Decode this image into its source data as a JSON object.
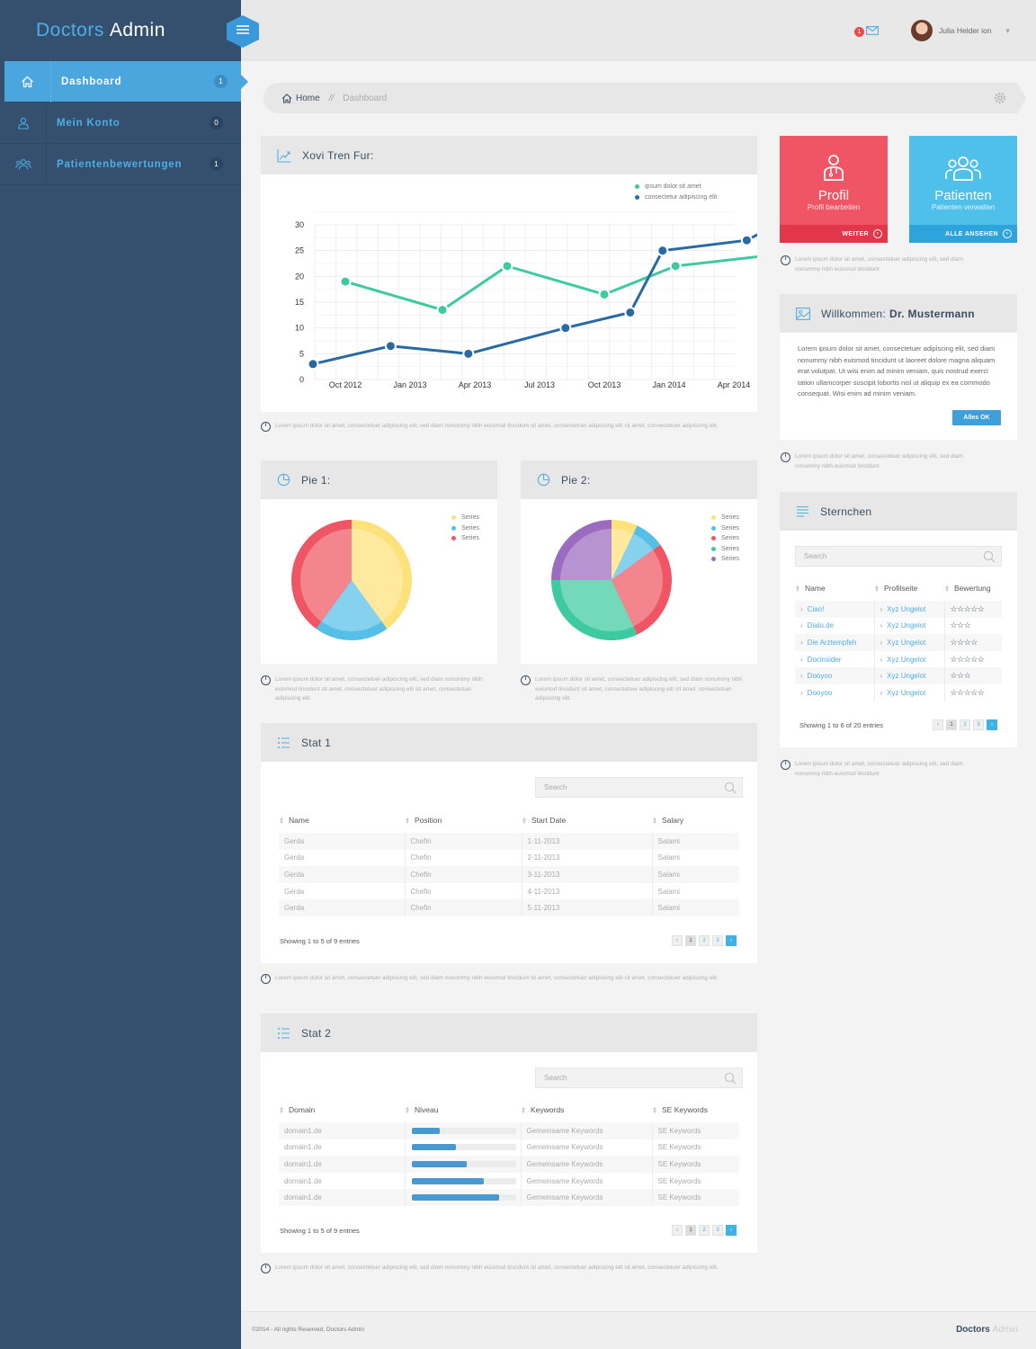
{
  "brand": {
    "part1": "Doctors",
    "part2": "Admin"
  },
  "sidebar": {
    "items": [
      {
        "label": "Dashboard",
        "count": "1",
        "icon": "home-icon"
      },
      {
        "label": "Mein Konto",
        "count": "0",
        "icon": "user-icon"
      },
      {
        "label": "Patientenbewertungen",
        "count": "1",
        "icon": "users-icon"
      }
    ]
  },
  "topbar": {
    "mail_count": "1",
    "user_name": "Julia Helder ion"
  },
  "breadcrumb": {
    "home": "Home",
    "separator": "//",
    "current": "Dashboard"
  },
  "line_panel": {
    "title": "Xovi Tren Fur:"
  },
  "chart_data": [
    {
      "type": "line",
      "x": [
        "Oct 2012",
        "Jan 2013",
        "Apr 2013",
        "Jul 2013",
        "Oct 2013",
        "Jan 2014",
        "Apr 2014"
      ],
      "series": [
        {
          "name": "ipsum dolor sit amet",
          "color": "#3ecaa0",
          "points": [
            [
              0,
              19
            ],
            [
              1.5,
              13.5
            ],
            [
              2.5,
              22
            ],
            [
              4,
              16.5
            ],
            [
              5.1,
              22
            ],
            [
              6.5,
              24
            ]
          ]
        },
        {
          "name": "consectetur adipiscing elit",
          "color": "#2a6aa2",
          "points": [
            [
              -0.5,
              3
            ],
            [
              0.7,
              6.5
            ],
            [
              1.9,
              5
            ],
            [
              3.4,
              10
            ],
            [
              4.4,
              13
            ],
            [
              4.9,
              25
            ],
            [
              6.2,
              27
            ],
            [
              6.5,
              29
            ]
          ]
        }
      ],
      "ylim": [
        0,
        30
      ],
      "yticks": [
        "0",
        "5",
        "10",
        "15",
        "20",
        "25",
        "30"
      ],
      "grid": true,
      "legend": "top-right"
    },
    {
      "type": "pie",
      "title": "Pie 1:",
      "labels": [
        "Series",
        "Series",
        "Series"
      ],
      "values": [
        40,
        20,
        40
      ],
      "colors": [
        "#fde17a",
        "#55bfe8",
        "#ef5564"
      ]
    },
    {
      "type": "pie",
      "title": "Pie 2:",
      "labels": [
        "Series",
        "Series",
        "Series",
        "Series",
        "Series"
      ],
      "values": [
        7,
        8,
        28,
        32,
        25
      ],
      "colors": [
        "#fde17a",
        "#55bfe8",
        "#ef5564",
        "#3ecaa0",
        "#9b6bbf"
      ]
    }
  ],
  "notes": {
    "line": "Lorem ipsum dolor sit amet, consectetuer adipiscing elit, sed diam nonummy nibh euismod tincidunt sit amet, consectetuer adipiscing elit sit amet, consectetuer adipiscing elit.",
    "pie1": "Lorem ipsum dolor sit amet, consectetuer adipiscing elit, sed diam nonummy nibh euismod tincidunt sit amet, consectetuer adipiscing elit sit amet, consectetuer adipiscing elit.",
    "pie2": "Lorem ipsum dolor sit amet, consectetuer adipiscing elit, sed diam nonummy nibh euismod tincidunt sit amet, consectetuer adipiscing elit sit amet, consectetuer adipiscing elit.",
    "stat1": "Lorem ipsum dolor sit amet, consectetuer adipiscing elit, sed diam nonummy nibh euismod tincidunt sit amet, consectetuer adipiscing elit sit amet, consectetuer adipiscing elit.",
    "stat2": "Lorem ipsum dolor sit amet, consectetuer adipiscing elit, sed diam nonummy nibh euismod tincidunt sit amet, consectetuer adipiscing elit sit amet, consectetuer adipiscing elit.",
    "tiles": "Lorem ipsum dolor sit amet, consectetuer adipiscing elit, sed diam nonummy nibh euismod tincidunt",
    "welcome": "Lorem ipsum dolor sit amet, consectetuer adipiscing elit, sed diam nonummy nibh euismod tincidunt",
    "stars": "Lorem ipsum dolor sit amet, consectetuer adipiscing elit, sed diam nonummy nibh euismod tincidunt"
  },
  "stat1": {
    "title": "Stat 1",
    "search_placeholder": "Search",
    "headers": [
      "Name",
      "Position",
      "Start Date",
      "Salary"
    ],
    "rows": [
      [
        "Gerda",
        "Chefin",
        "1-11-2013",
        "Salami"
      ],
      [
        "Gerda",
        "Chefin",
        "2-11-2013",
        "Salami"
      ],
      [
        "Gerda",
        "Chefin",
        "3-11-2013",
        "Salami"
      ],
      [
        "Gerda",
        "Chefin",
        "4-11-2013",
        "Salami"
      ],
      [
        "Gerda",
        "Chefin",
        "5-11-2013",
        "Salami"
      ]
    ],
    "footer": "Showing 1 to 5 of 9 entries",
    "pages": [
      "‹",
      "1",
      "2",
      "3",
      "›"
    ]
  },
  "stat2": {
    "title": "Stat 2",
    "search_placeholder": "Search",
    "headers": [
      "Domain",
      "Niveau",
      "Keywords",
      "SE Keywords"
    ],
    "rows": [
      {
        "domain": "domain1.de",
        "level": 0.27,
        "keywords": "Gemeinsame Keywords",
        "se": "SE Keywords"
      },
      {
        "domain": "domain1.de",
        "level": 0.43,
        "keywords": "Gemeinsame Keywords",
        "se": "SE Keywords"
      },
      {
        "domain": "domain1.de",
        "level": 0.53,
        "keywords": "Gemeinsame Keywords",
        "se": "SE Keywords"
      },
      {
        "domain": "domain1.de",
        "level": 0.69,
        "keywords": "Gemeinsame Keywords",
        "se": "SE Keywords"
      },
      {
        "domain": "domain1.de",
        "level": 0.84,
        "keywords": "Gemeinsame Keywords",
        "se": "SE Keywords"
      }
    ],
    "footer": "Showing 1 to 5 of 9 entries",
    "pages": [
      "‹",
      "1",
      "2",
      "3",
      "›"
    ]
  },
  "tiles": {
    "profil": {
      "title": "Profil",
      "sub": "Profil bearbeiten",
      "action": "WEITER",
      "color": "#ef5564",
      "bar_color": "#e2364a"
    },
    "patienten": {
      "title": "Patienten",
      "sub": "Patienten verwalten",
      "action": "ALLE ANSEHEN",
      "color": "#4fc0ea",
      "bar_color": "#2ea4dd"
    }
  },
  "welcome": {
    "title_prefix": "Willkommen:",
    "title_name": "Dr. Mustermann",
    "body": "Lorem ipsum dolor sit amet, consectetuer adipiscing elit, sed diam nonummy nibh euismod tincidunt ut laoreet dolore magna aliquam erat volutpat. Ut wisi enim ad minim veniam, quis nostrud exerci tation ullamcorper suscipit lobortis nisl ut aliquip ex ea commodo consequat. Wisi enim ad minim veniam.",
    "button": "Alles OK"
  },
  "stars_panel": {
    "title": "Sternchen",
    "search_placeholder": "Search",
    "headers": [
      "Name",
      "Profilseite",
      "Bewertung"
    ],
    "rows": [
      {
        "name": "Ciao!",
        "profile": "Xyz Ungelot",
        "rating": 5
      },
      {
        "name": "Dialo.de",
        "profile": "Xyz Ungelot",
        "rating": 3
      },
      {
        "name": "Die Arztempfeh",
        "profile": "Xyz Ungelot",
        "rating": 4
      },
      {
        "name": "Docinsider",
        "profile": "Xyz Ungelot",
        "rating": 5
      },
      {
        "name": "Dooyoo",
        "profile": "Xyz Ungelot",
        "rating": 3
      },
      {
        "name": "Dooyoo",
        "profile": "Xyz Ungelot",
        "rating": 5
      }
    ],
    "footer": "Showing 1 to 6 of 20 entries",
    "pages": [
      "‹",
      "1",
      "2",
      "3",
      "›"
    ]
  },
  "footer": {
    "copyright": "©2014 - All rights Reserved, Doctors Admin",
    "brand1": "Doctors",
    "brand2": "Admin"
  }
}
